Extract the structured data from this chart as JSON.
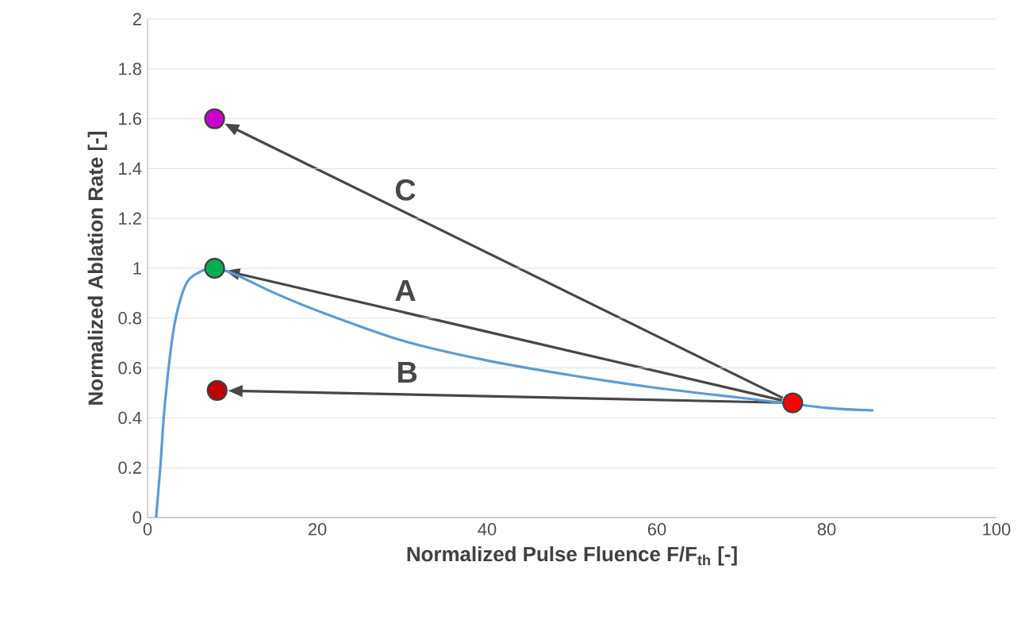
{
  "chart_data": {
    "type": "scatter",
    "xlabel": "Normalized Pulse Fluence F/F$_{th}$ [-]",
    "ylabel": "Normalized Ablation Rate [-]",
    "xlim": [
      0,
      100
    ],
    "ylim": [
      0,
      2
    ],
    "xticks": [
      0,
      20,
      40,
      60,
      80,
      100
    ],
    "yticks": [
      0,
      0.2,
      0.4,
      0.6,
      0.8,
      1,
      1.2,
      1.4,
      1.6,
      1.8,
      2
    ],
    "grid": "y",
    "series": [
      {
        "type": "line",
        "color": "#5b9bd5",
        "marker": "none",
        "x": [
          1,
          1.5,
          2,
          3,
          4,
          5,
          7.4,
          10,
          15,
          20,
          30,
          40,
          50,
          60,
          70,
          80,
          85.5
        ],
        "values": [
          0,
          0.2,
          0.44,
          0.74,
          0.89,
          0.96,
          1,
          0.98,
          0.9,
          0.83,
          0.71,
          0.63,
          0.57,
          0.52,
          0.48,
          0.44,
          0.43
        ]
      },
      {
        "color": "#cc00cc",
        "marker": "circle",
        "x": [
          7.9
        ],
        "values": [
          1.6
        ]
      },
      {
        "color": "#00b050",
        "marker": "circle",
        "x": [
          7.9
        ],
        "values": [
          1.0
        ]
      },
      {
        "color": "#c00000",
        "marker": "circle",
        "x": [
          8.2
        ],
        "values": [
          0.51
        ]
      },
      {
        "color": "#ff0000",
        "marker": "circle",
        "x": [
          76
        ],
        "values": [
          0.46
        ]
      }
    ],
    "annotations": [
      "C",
      "A",
      "B"
    ]
  }
}
